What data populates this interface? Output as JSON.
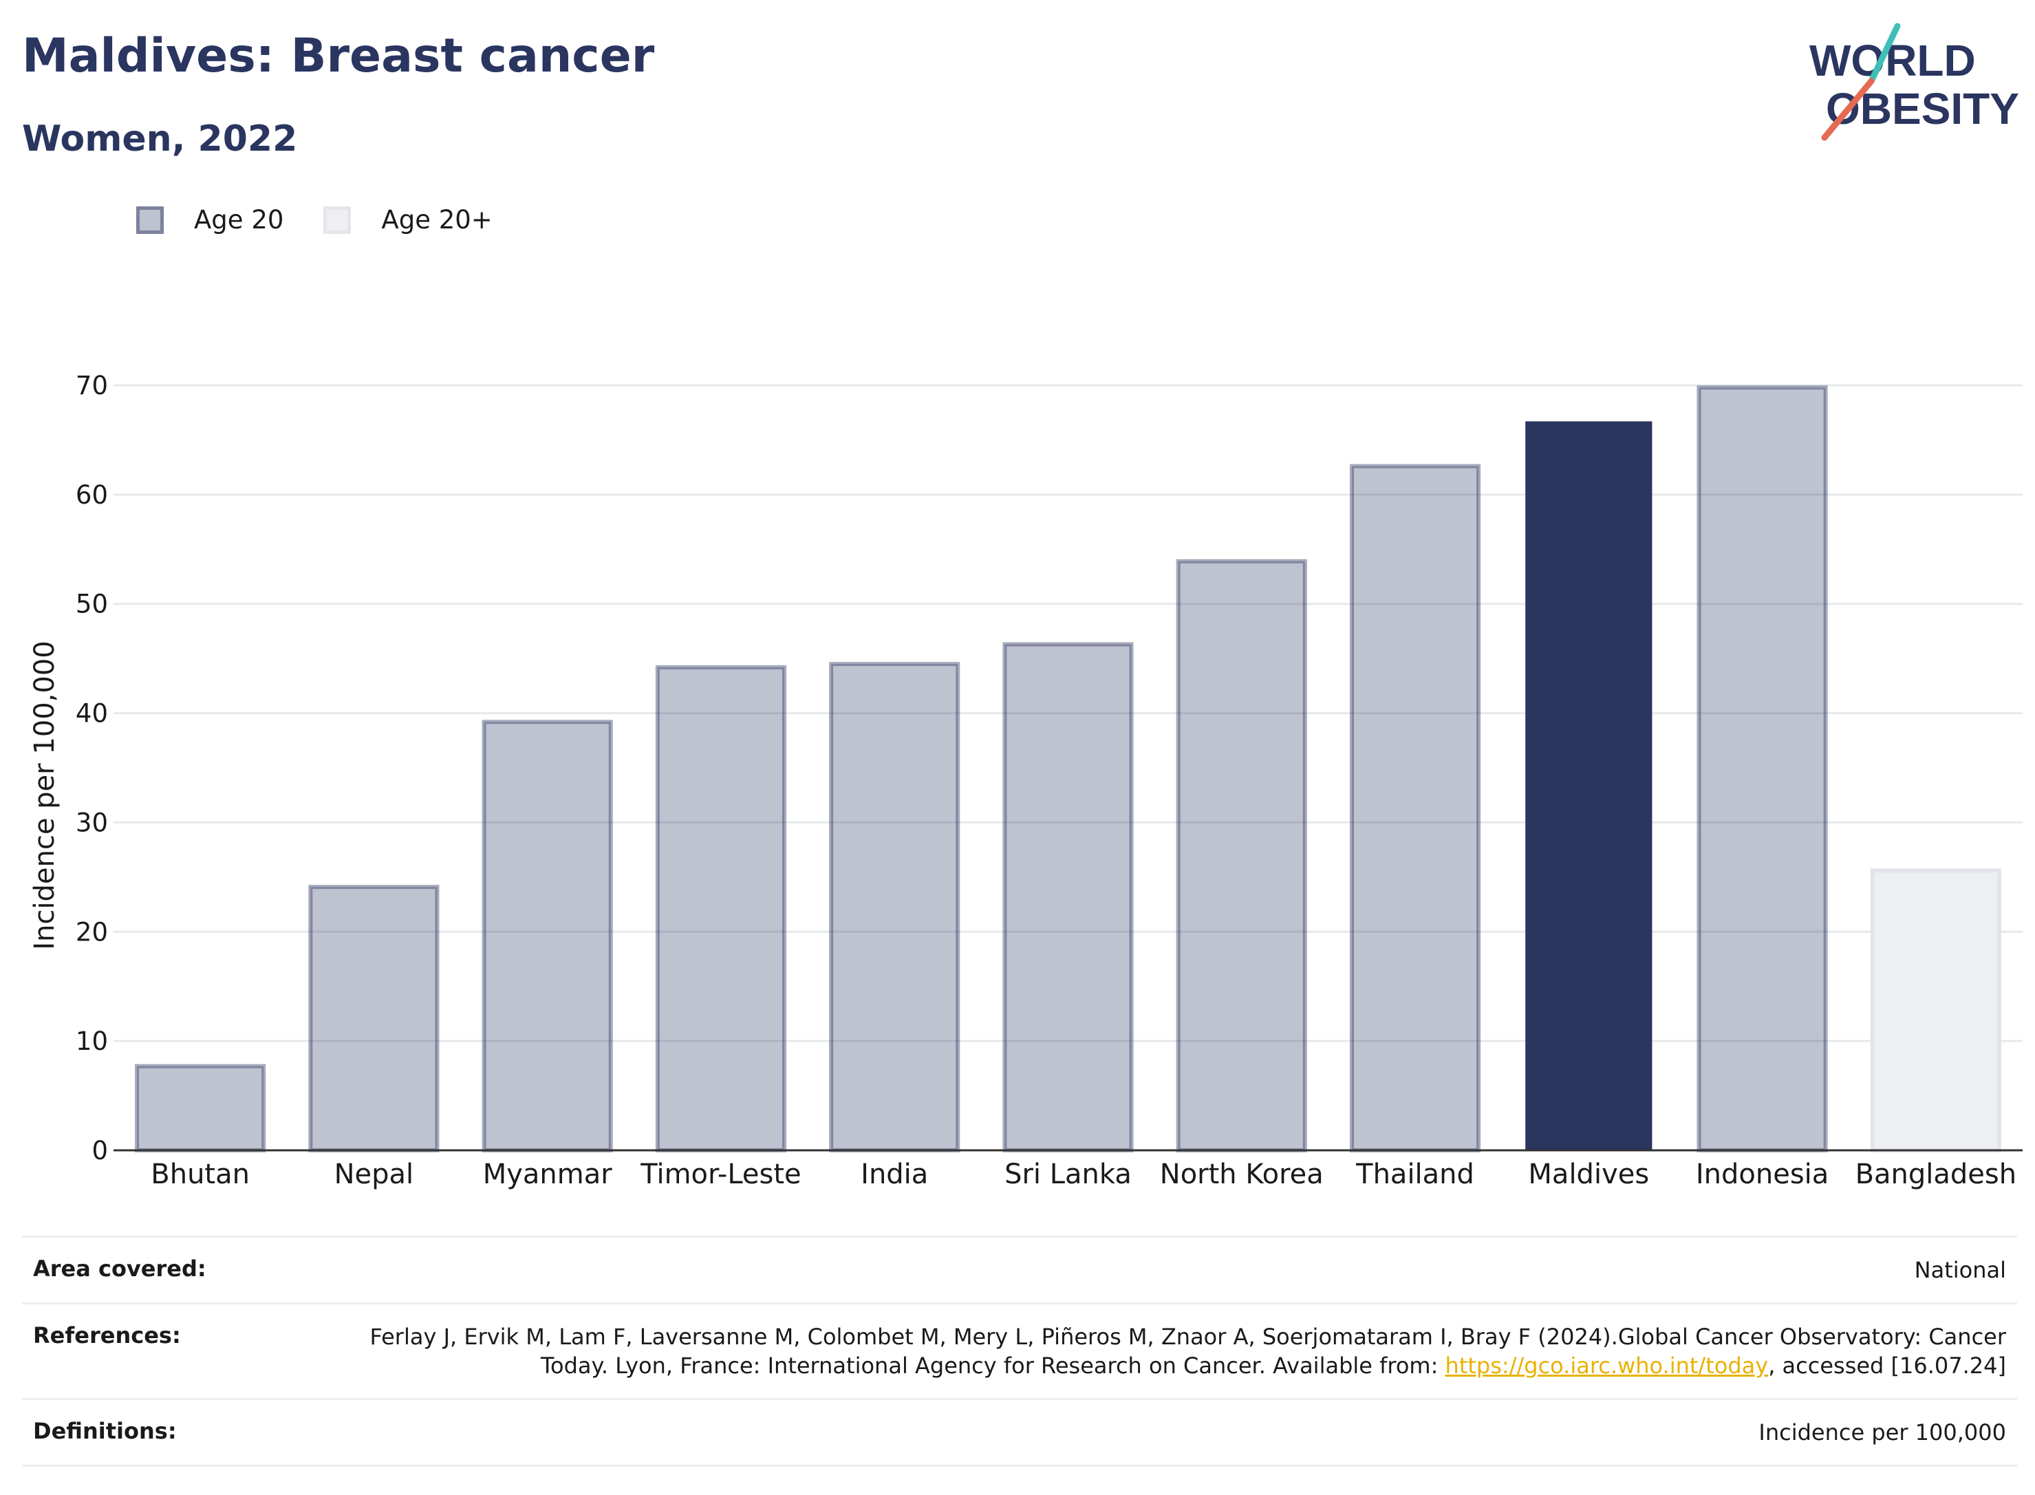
{
  "title": "Maldives: Breast cancer",
  "subtitle": "Women, 2022",
  "logo": {
    "line1": "WORLD",
    "line2": "OBESITY"
  },
  "legend": [
    {
      "label": "Age 20",
      "color": "#2a3560"
    },
    {
      "label": "Age 20+",
      "color": "#e9eaf0"
    }
  ],
  "chart_data": {
    "type": "bar",
    "ylabel": "Incidence per 100,000",
    "ylim": [
      0,
      70
    ],
    "yticks": [
      0,
      10,
      20,
      30,
      40,
      50,
      60,
      70
    ],
    "grid": true,
    "legend_position": "top-left",
    "categories": [
      "Bhutan",
      "Nepal",
      "Myanmar",
      "Timor-Leste",
      "India",
      "Sri Lanka",
      "North Korea",
      "Thailand",
      "Maldives",
      "Indonesia",
      "Bangladesh"
    ],
    "values": [
      7.7,
      24.1,
      39.2,
      44.2,
      44.5,
      46.3,
      53.9,
      62.6,
      66.7,
      69.8,
      25.6
    ],
    "groups": [
      "Age 20",
      "Age 20",
      "Age 20",
      "Age 20",
      "Age 20",
      "Age 20",
      "Age 20",
      "Age 20",
      "Age 20",
      "Age 20",
      "Age 20+"
    ],
    "highlight": "Maldives",
    "colors": {
      "age20": "#2a3560",
      "age20plus": "#e9eaf0",
      "highlight": "#2a3560"
    }
  },
  "info": {
    "area_label": "Area covered:",
    "area_value": "National",
    "references_label": "References:",
    "references_text": "Ferlay J, Ervik M, Lam F, Laversanne M, Colombet M, Mery L, Piñeros M, Znaor A, Soerjomataram I, Bray F (2024).Global Cancer Observatory: Cancer Today. Lyon, France: International Agency for Research on Cancer. Available from: ",
    "references_link": "https://gco.iarc.who.int/today",
    "references_tail": ", accessed [16.07.24]",
    "definitions_label": "Definitions:",
    "definitions_value": "Incidence per 100,000"
  }
}
